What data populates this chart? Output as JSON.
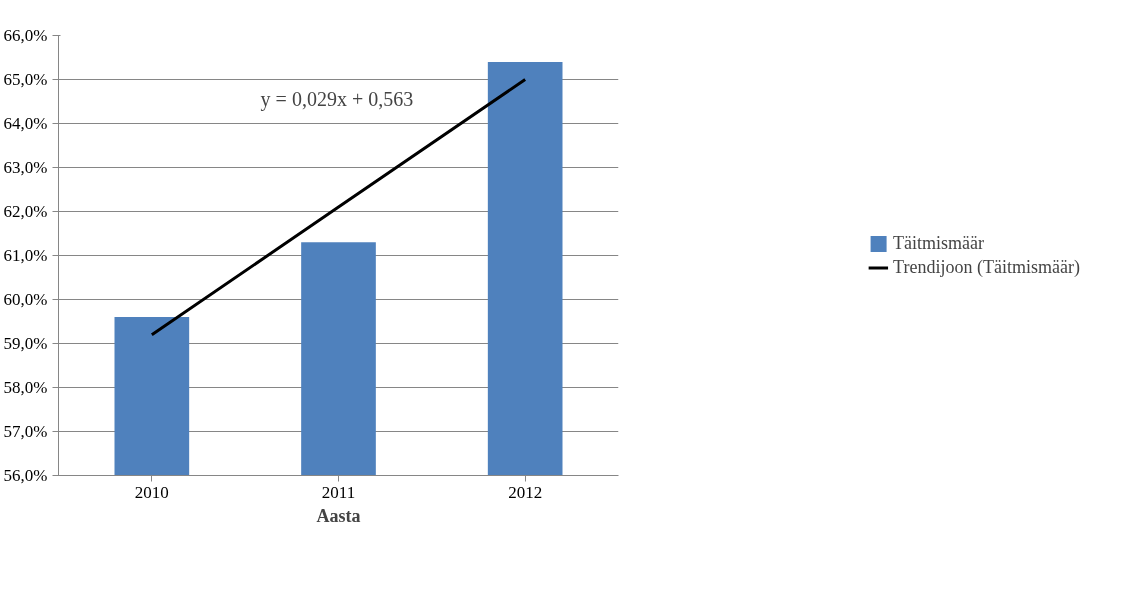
{
  "chart_data": {
    "type": "bar",
    "xlabel": "Aasta",
    "categories": [
      "2010",
      "2011",
      "2012"
    ],
    "series": [
      {
        "name": "Täitmismäär",
        "color": "#4f81bd",
        "values": [
          59.6,
          61.3,
          65.4
        ]
      },
      {
        "name": "Trendijoon (Täitmismäär)",
        "type": "line",
        "color": "#000000",
        "values": [
          59.2,
          62.1,
          65.0
        ]
      }
    ],
    "ylim": [
      56,
      66
    ],
    "yticks": [
      {
        "value": 56,
        "label": "56,0%"
      },
      {
        "value": 57,
        "label": "57,0%"
      },
      {
        "value": 58,
        "label": "58,0%"
      },
      {
        "value": 59,
        "label": "59,0%"
      },
      {
        "value": 60,
        "label": "60,0%"
      },
      {
        "value": 61,
        "label": "61,0%"
      },
      {
        "value": 62,
        "label": "62,0%"
      },
      {
        "value": 63,
        "label": "63,0%"
      },
      {
        "value": 64,
        "label": "64,0%"
      },
      {
        "value": 65,
        "label": "65,0%"
      },
      {
        "value": 66,
        "label": "66,0%"
      }
    ],
    "annotations": [
      "y = 0,029x + 0,563"
    ],
    "grid": "y",
    "legend": "right"
  }
}
